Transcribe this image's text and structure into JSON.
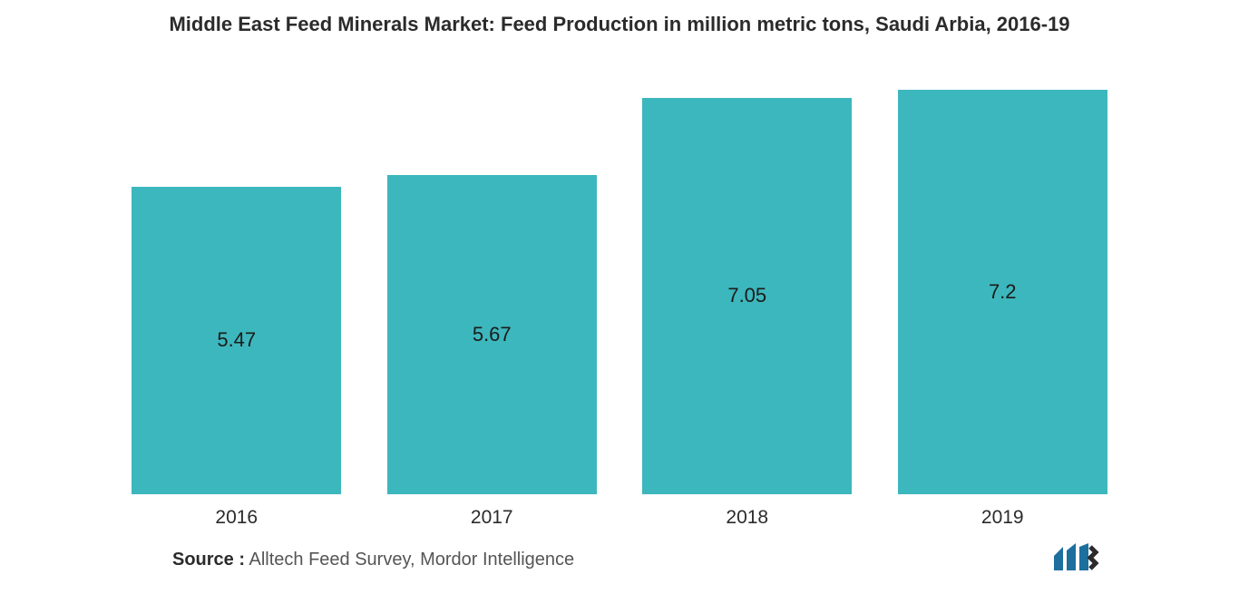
{
  "chart": {
    "type": "bar",
    "title": "Middle East Feed Minerals Market: Feed Production in million metric tons, Saudi Arbia, 2016-19",
    "title_fontsize": 22,
    "title_color": "#2b2b2b",
    "background_color": "#ffffff",
    "categories": [
      "2016",
      "2017",
      "2018",
      "2019"
    ],
    "values": [
      5.47,
      5.67,
      7.05,
      7.2
    ],
    "value_labels": [
      "5.47",
      "5.67",
      "7.05",
      "7.2"
    ],
    "bar_color": "#3cb7bd",
    "value_label_color": "#1b1b1b",
    "value_label_fontsize": 22,
    "xlabel_fontsize": 21,
    "xlabel_color": "#2b2b2b",
    "ylim_max": 7.5,
    "bar_width_ratio": 0.82
  },
  "source": {
    "label": "Source :",
    "text": " Alltech Feed Survey, Mordor Intelligence"
  },
  "logo": {
    "name": "mordor-intelligence-logo",
    "bar_color": "#1d6f9e",
    "accent_color": "#2b2b2b"
  }
}
